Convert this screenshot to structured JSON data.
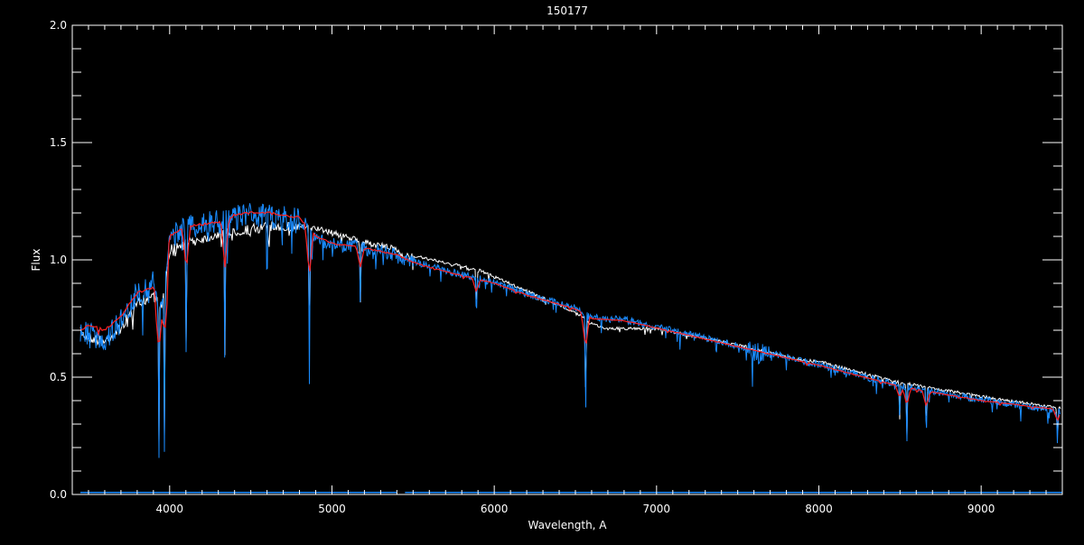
{
  "chart_data": {
    "type": "line",
    "title": "150177",
    "xlabel": "Wavelength, A",
    "ylabel": "Flux",
    "xlim": [
      3400,
      9500
    ],
    "ylim": [
      0,
      2.0
    ],
    "xticks": [
      4000,
      5000,
      6000,
      7000,
      8000,
      9000
    ],
    "xtick_labels": [
      "4000",
      "5000",
      "6000",
      "7000",
      "8000",
      "9000"
    ],
    "yticks": [
      0.0,
      0.5,
      1.0,
      1.5,
      2.0
    ],
    "ytick_labels": [
      "0.0",
      "0.5",
      "1.0",
      "1.5",
      "2.0"
    ],
    "grid": false,
    "background": "#000000",
    "series": [
      {
        "color": "#ffffff",
        "x": [
          3450,
          3500,
          3600,
          3700,
          3800,
          3900,
          3950,
          4000,
          4100,
          4200,
          4300,
          4400,
          4500,
          4600,
          4700,
          4800,
          4850,
          4900,
          5000,
          5200,
          5400,
          5420,
          5500,
          5700,
          5900,
          6100,
          6300,
          6500,
          6600,
          6700,
          6900,
          7000,
          7500,
          7900,
          8000,
          8100,
          8500,
          9000,
          9490
        ],
        "y": [
          0.7,
          0.68,
          0.66,
          0.72,
          0.82,
          0.86,
          0.8,
          1.05,
          1.08,
          1.1,
          1.12,
          1.13,
          1.14,
          1.15,
          1.15,
          1.15,
          1.14,
          1.14,
          1.12,
          1.08,
          1.05,
          1.03,
          1.02,
          0.99,
          0.96,
          0.9,
          0.84,
          0.78,
          0.73,
          0.71,
          0.71,
          0.71,
          0.64,
          0.575,
          0.57,
          0.55,
          0.48,
          0.42,
          0.37
        ]
      },
      {
        "color": "#1a8cff",
        "x": [
          3450,
          3500,
          3600,
          3700,
          3800,
          3900,
          3950,
          4000,
          4100,
          4200,
          4300,
          4400,
          4500,
          4600,
          4700,
          4800,
          4850,
          4900,
          5000,
          5200,
          5400,
          5420,
          5500,
          5700,
          6000,
          6200,
          6500,
          6600,
          6800,
          7000,
          7500,
          8000,
          8500,
          9000,
          9490
        ],
        "y": [
          0.72,
          0.7,
          0.68,
          0.76,
          0.88,
          0.92,
          0.82,
          1.12,
          1.16,
          1.17,
          1.18,
          1.2,
          1.21,
          1.21,
          1.2,
          1.19,
          1.15,
          1.1,
          1.08,
          1.06,
          1.03,
          1.01,
          1.0,
          0.96,
          0.91,
          0.86,
          0.8,
          0.76,
          0.75,
          0.72,
          0.64,
          0.56,
          0.47,
          0.41,
          0.36
        ]
      },
      {
        "color": "#ff2020",
        "x": [
          3450,
          3500,
          3600,
          3700,
          3800,
          3900,
          3950,
          4000,
          4100,
          4200,
          4300,
          4400,
          4500,
          4600,
          4700,
          4800,
          4850,
          4900,
          5000,
          5200,
          5400,
          5500,
          5700,
          6000,
          6200,
          6500,
          6600,
          6800,
          7000,
          7500,
          8000,
          8500,
          9000,
          9490
        ],
        "y": [
          0.7,
          0.72,
          0.7,
          0.76,
          0.86,
          0.88,
          0.78,
          1.1,
          1.14,
          1.15,
          1.16,
          1.19,
          1.2,
          1.2,
          1.19,
          1.18,
          1.14,
          1.1,
          1.07,
          1.05,
          1.02,
          0.99,
          0.95,
          0.9,
          0.85,
          0.79,
          0.75,
          0.74,
          0.71,
          0.63,
          0.55,
          0.46,
          0.4,
          0.36
        ]
      }
    ],
    "absorption_lines": {
      "x": [
        3934,
        3968,
        4102,
        4340,
        4861,
        5175,
        5890,
        6563,
        8498,
        8542,
        8662,
        9470
      ],
      "y": [
        0.13,
        0.13,
        0.52,
        0.48,
        0.46,
        0.77,
        0.73,
        0.29,
        0.3,
        0.2,
        0.22,
        0.2
      ]
    },
    "error_series": {
      "color": "#1a8cff",
      "x": [
        3450,
        5400,
        5450,
        9500
      ],
      "y": [
        0.005,
        0.005,
        0.005,
        0.005
      ]
    }
  }
}
